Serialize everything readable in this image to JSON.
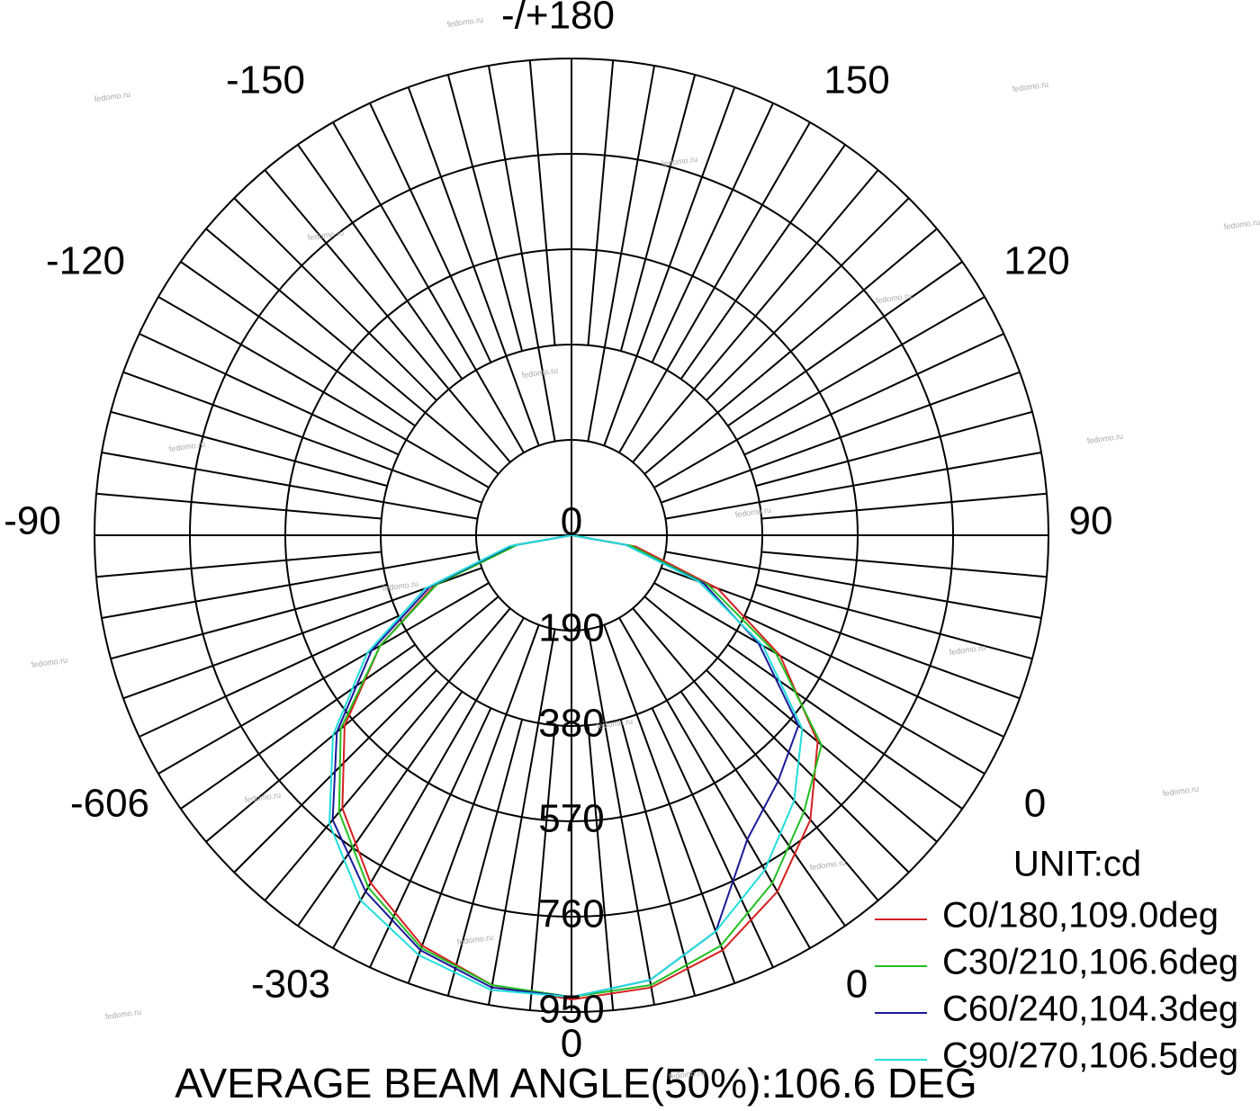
{
  "chart_data": {
    "type": "polar",
    "title": "AVERAGE BEAM ANGLE(50%):106.6 DEG",
    "unit": "UNIT:cd",
    "angle_labels": [
      "-/+180",
      "150",
      "-150",
      "120",
      "-120",
      "90",
      "-90",
      "0",
      "-606",
      "0",
      "-303",
      "0"
    ],
    "rlim": [
      0,
      950
    ],
    "rticks": [
      0,
      190,
      380,
      570,
      760,
      950
    ],
    "theta": [
      -90,
      -80,
      -70,
      -60,
      -50,
      -40,
      -30,
      -20,
      -10,
      0,
      10,
      20,
      30,
      40,
      50,
      60,
      70,
      80,
      90
    ],
    "series": [
      {
        "name": "C0/180,109.0deg",
        "color": "#d42020",
        "values": [
          0,
          115,
          290,
          440,
          590,
          710,
          800,
          870,
          910,
          925,
          915,
          880,
          820,
          740,
          640,
          480,
          310,
          130,
          0
        ]
      },
      {
        "name": "C30/210,106.6deg",
        "color": "#22c022",
        "values": [
          0,
          110,
          285,
          440,
          600,
          720,
          810,
          875,
          910,
          920,
          910,
          870,
          800,
          720,
          650,
          470,
          290,
          120,
          0
        ]
      },
      {
        "name": "C60/240,104.3deg",
        "color": "#1a1a9a",
        "values": [
          0,
          120,
          300,
          460,
          610,
          740,
          820,
          880,
          915,
          920,
          900,
          840,
          700,
          640,
          590,
          430,
          280,
          110,
          0
        ]
      },
      {
        "name": "C90/270,106.5deg",
        "color": "#22dddd",
        "values": [
          0,
          125,
          310,
          470,
          620,
          750,
          840,
          890,
          920,
          920,
          900,
          840,
          770,
          690,
          600,
          440,
          270,
          110,
          0
        ]
      }
    ],
    "watermark": "fedomo.ru"
  }
}
